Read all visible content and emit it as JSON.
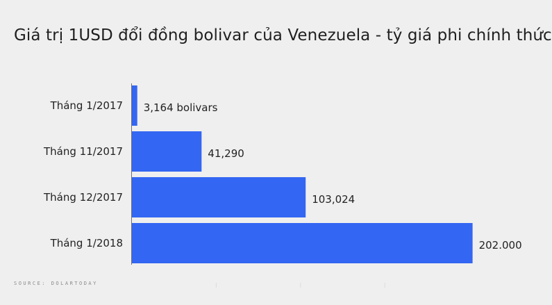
{
  "chart_data": {
    "type": "bar",
    "orientation": "horizontal",
    "title": "Giá trị 1USD đổi đồng bolivar của Venezuela - tỷ giá phi chính thức",
    "categories": [
      "Tháng 1/2017",
      "Tháng 11/2017",
      "Tháng 12/2017",
      "Tháng 1/2018"
    ],
    "values": [
      3164,
      41290,
      103024,
      202000
    ],
    "value_labels": [
      "3,164 bolivars",
      "41,290",
      "103,024",
      "202.000"
    ],
    "xlim": [
      0,
      245000
    ],
    "bar_color": "#3366f2",
    "grid": false,
    "legend": "none",
    "source": "SOURCE: DOLARTODAY"
  }
}
